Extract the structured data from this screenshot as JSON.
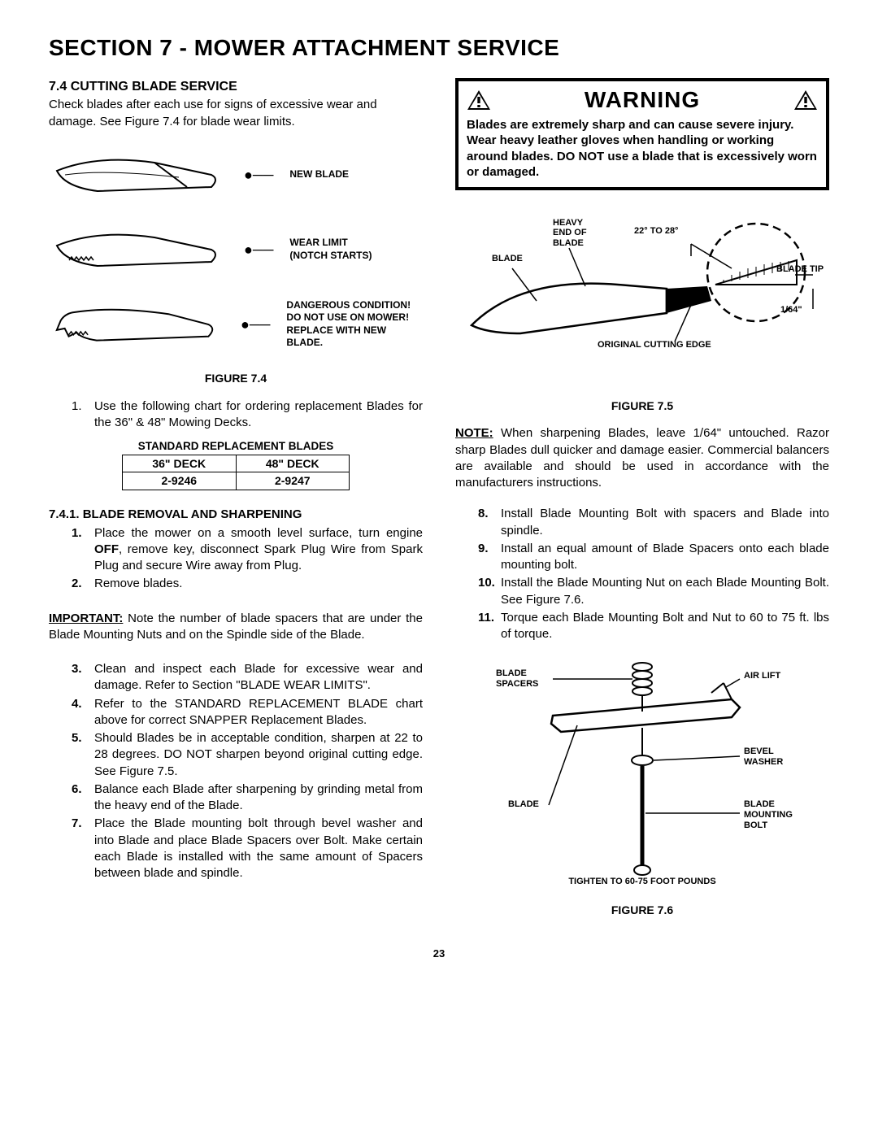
{
  "section_title": "SECTION 7 - MOWER ATTACHMENT SERVICE",
  "left": {
    "heading": "7.4  CUTTING BLADE SERVICE",
    "intro": "Check blades after each use for signs of excessive wear and damage.  See Figure 7.4 for blade wear limits.",
    "fig74": {
      "label_new": "NEW BLADE",
      "label_wear": "WEAR LIMIT\n(NOTCH STARTS)",
      "label_danger": "DANGEROUS CONDITION!\nDO NOT USE ON MOWER!\nREPLACE WITH NEW BLADE.",
      "caption": "FIGURE 7.4"
    },
    "step1_num": "1.",
    "step1_text": "Use the following chart for ordering replacement Blades for the 36\" & 48\" Mowing Decks.",
    "table": {
      "title": "STANDARD REPLACEMENT BLADES",
      "cols": [
        "36\" DECK",
        "48\" DECK"
      ],
      "row": [
        "2-9246",
        "2-9247"
      ]
    },
    "subsub": "7.4.1.   BLADE REMOVAL AND SHARPENING",
    "steps_a": [
      {
        "n": "1.",
        "t": "Place the mower on a smooth level surface, turn engine OFF, remove key, disconnect Spark Plug Wire from Spark Plug and secure Wire away from Plug."
      },
      {
        "n": "2.",
        "t": "Remove blades."
      }
    ],
    "important": "IMPORTANT: Note the number of blade spacers that are under the Blade Mounting Nuts and on the Spindle side of the Blade.",
    "steps_b": [
      {
        "n": "3.",
        "t": "Clean and inspect each Blade for excessive wear and damage. Refer to Section \"BLADE WEAR LIMITS\"."
      },
      {
        "n": "4.",
        "t": "Refer to the STANDARD REPLACEMENT BLADE chart above for correct SNAPPER Replacement Blades."
      },
      {
        "n": "5.",
        "t": "Should Blades be in acceptable condition, sharpen at 22 to 28 degrees. DO NOT sharpen beyond original cutting edge.  See Figure 7.5."
      },
      {
        "n": "6.",
        "t": "Balance each Blade after sharpening by grinding metal from the heavy end of the Blade."
      },
      {
        "n": "7.",
        "t": "Place the Blade mounting bolt through bevel washer and into Blade and place Blade Spacers over Bolt. Make certain each Blade is installed with the same amount of Spacers between blade and spindle."
      }
    ]
  },
  "right": {
    "warning": {
      "title": "WARNING",
      "body": "Blades are extremely sharp and can cause severe injury. Wear heavy leather gloves when handling or working around blades. DO NOT use a blade that is excessively worn or damaged."
    },
    "fig75": {
      "heavy": "HEAVY\nEND OF\nBLADE",
      "blade": "BLADE",
      "angle": "22° TO 28°",
      "tip": "BLADE TIP",
      "fraction": "1/64\"",
      "edge": "ORIGINAL CUTTING EDGE",
      "caption": "FIGURE 7.5"
    },
    "note_lead": "NOTE:",
    "note_body": " When sharpening Blades, leave 1/64\" untouched. Razor sharp Blades dull quicker and damage easier. Commercial balancers are available and should be used in accordance with the manufacturers instructions.",
    "steps_c": [
      {
        "n": "8.",
        "t": "Install Blade Mounting Bolt with spacers and Blade into spindle."
      },
      {
        "n": "9.",
        "t": "Install an equal amount of Blade Spacers onto each blade mounting bolt."
      },
      {
        "n": "10.",
        "t": "Install the Blade Mounting Nut on each Blade Mounting Bolt.  See Figure 7.6."
      },
      {
        "n": "11.",
        "t": "Torque each Blade Mounting Bolt and Nut to 60 to 75 ft. lbs of torque."
      }
    ],
    "fig76": {
      "spacers": "BLADE\nSPACERS",
      "airlift": "AIR LIFT",
      "bevel": "BEVEL\nWASHER",
      "blade": "BLADE",
      "bolt": "BLADE\nMOUNTING\nBOLT",
      "tighten": "TIGHTEN TO 60-75 FOOT POUNDS",
      "caption": "FIGURE 7.6"
    }
  },
  "page_number": "23",
  "colors": {
    "text": "#000000",
    "bg": "#ffffff",
    "border": "#000000"
  }
}
